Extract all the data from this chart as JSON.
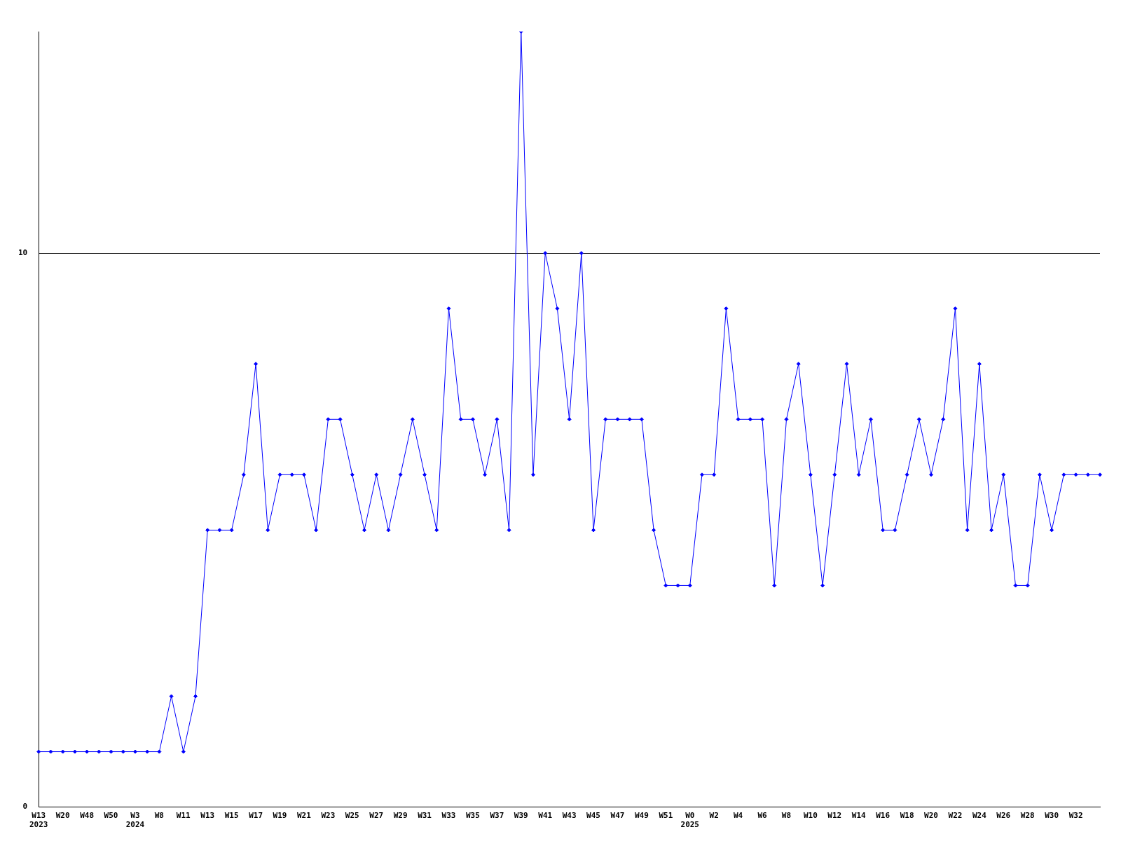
{
  "chart_data": {
    "type": "line",
    "categories": [
      "W13\n2023",
      null,
      "W20",
      null,
      "W48",
      null,
      "W50",
      null,
      "W3\n2024",
      null,
      "W8",
      null,
      "W11",
      null,
      "W13",
      null,
      "W15",
      null,
      "W17",
      null,
      "W19",
      null,
      "W21",
      null,
      "W23",
      null,
      "W25",
      null,
      "W27",
      null,
      "W29",
      null,
      "W31",
      null,
      "W33",
      null,
      "W35",
      null,
      "W37",
      null,
      "W39",
      null,
      "W41",
      null,
      "W43",
      null,
      "W45",
      null,
      "W47",
      null,
      "W49",
      null,
      "W51",
      null,
      "W0\n2025",
      null,
      "W2",
      null,
      "W4",
      null,
      "W6",
      null,
      "W8",
      null,
      "W10",
      null,
      "W12",
      null,
      "W14",
      null,
      "W16",
      null,
      "W18",
      null,
      "W20",
      null,
      "W22",
      null,
      "W24",
      null,
      "W26",
      null,
      "W28",
      null,
      "W30",
      null,
      "W32",
      null,
      null
    ],
    "series": [
      {
        "color": "#0000ff",
        "values": [
          1,
          1,
          1,
          1,
          1,
          1,
          1,
          1,
          1,
          1,
          1,
          2,
          1,
          2,
          5,
          5,
          5,
          6,
          8,
          5,
          6,
          6,
          6,
          5,
          7,
          7,
          6,
          5,
          6,
          5,
          6,
          7,
          6,
          5,
          9,
          7,
          7,
          6,
          7,
          5,
          14,
          6,
          10,
          9,
          7,
          10,
          5,
          7,
          7,
          7,
          7,
          5,
          4,
          4,
          4,
          6,
          6,
          9,
          7,
          7,
          7,
          4,
          7,
          8,
          6,
          4,
          6,
          8,
          6,
          7,
          5,
          5,
          6,
          7,
          6,
          7,
          9,
          5,
          8,
          5,
          6,
          4,
          4,
          6,
          5,
          6,
          6,
          6,
          6
        ]
      }
    ],
    "ylim": [
      0,
      14
    ],
    "yticks": [
      0,
      10
    ],
    "grid": "y",
    "marker": "diamond",
    "line_style": "solid",
    "legend": false
  }
}
